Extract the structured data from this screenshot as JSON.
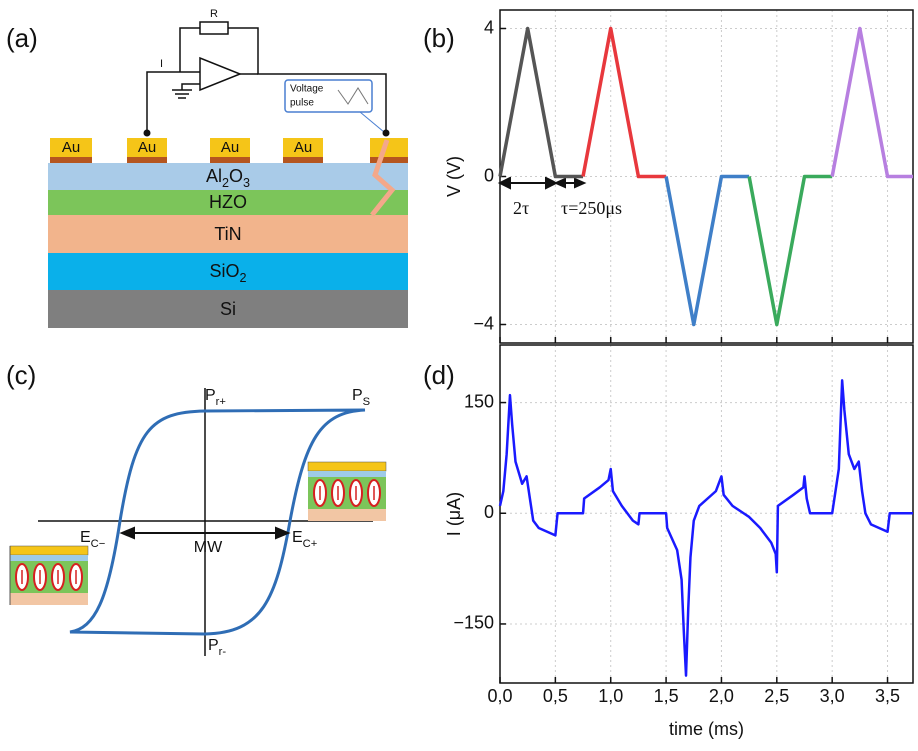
{
  "panel_labels": [
    "(a)",
    "(b)",
    "(c)",
    "(d)"
  ],
  "device": {
    "pads": [
      "Au",
      "Au",
      "Au",
      "Au"
    ],
    "layers": [
      [
        "Al",
        "2",
        "O",
        "3"
      ],
      [
        "HZO"
      ],
      [
        "TiN"
      ],
      [
        "SiO",
        "2"
      ],
      [
        "Si"
      ]
    ],
    "resistor": "R",
    "current": "I",
    "pulse": [
      "Voltage",
      "pulse"
    ]
  },
  "hysteresis": {
    "labels": [
      [
        "P",
        "r+"
      ],
      [
        "P",
        "S"
      ],
      [
        "E",
        "C−"
      ],
      [
        "MW"
      ],
      [
        "E",
        "C+"
      ],
      [
        "P",
        "r-"
      ]
    ]
  },
  "chart_data": [
    {
      "type": "line",
      "ylabel": "V (V)",
      "xlim": [
        0,
        3.73
      ],
      "ylim": [
        -4.5,
        4.5
      ],
      "xticks": [
        0,
        0.5,
        1,
        1.5,
        2,
        2.5,
        3,
        3.5
      ],
      "yticks": [
        {
          "value": -4,
          "label": "−4"
        },
        0,
        4
      ],
      "grid": true,
      "annotations": [
        "2τ",
        "τ=250μs"
      ],
      "series": [
        {
          "color": "#555555",
          "x": [
            0,
            0.25,
            0.5,
            0.75
          ],
          "values": [
            0,
            4,
            0,
            0
          ]
        },
        {
          "color": "#e8383d",
          "x": [
            0.75,
            1,
            1.25,
            1.5
          ],
          "values": [
            0,
            4,
            0,
            0
          ]
        },
        {
          "color": "#3f7fc8",
          "x": [
            1.5,
            1.75,
            2,
            2.25
          ],
          "values": [
            0,
            -4,
            0,
            0
          ]
        },
        {
          "color": "#3aaa5c",
          "x": [
            2.25,
            2.5,
            2.75,
            3
          ],
          "values": [
            0,
            -4,
            0,
            0
          ]
        },
        {
          "color": "#b77fe0",
          "x": [
            3,
            3.25,
            3.5,
            3.73
          ],
          "values": [
            0,
            4,
            0,
            0
          ]
        }
      ]
    },
    {
      "type": "line",
      "ylabel": "I (μA)",
      "xlabel": "time (ms)",
      "xlim": [
        0,
        3.73
      ],
      "ylim": [
        -230,
        228
      ],
      "xticks": [
        {
          "value": 0,
          "label": "0,0"
        },
        {
          "value": 0.5,
          "label": "0,5"
        },
        {
          "value": 1,
          "label": "1,0"
        },
        {
          "value": 1.5,
          "label": "1,5"
        },
        {
          "value": 2,
          "label": "2,0"
        },
        {
          "value": 2.5,
          "label": "2,5"
        },
        {
          "value": 3,
          "label": "3,0"
        },
        {
          "value": 3.5,
          "label": "3,5"
        }
      ],
      "yticks": [
        {
          "value": -150,
          "label": "−150"
        },
        0,
        150
      ],
      "grid": true,
      "series": [
        {
          "color": "#1a1aff",
          "x": [
            0,
            0.03,
            0.06,
            0.09,
            0.11,
            0.14,
            0.2,
            0.24,
            0.27,
            0.3,
            0.35,
            0.5,
            0.52,
            0.75,
            0.76,
            0.9,
            0.98,
            1,
            1.02,
            1.1,
            1.2,
            1.25,
            1.26,
            1.5,
            1.51,
            1.6,
            1.64,
            1.66,
            1.68,
            1.7,
            1.72,
            1.75,
            1.8,
            1.95,
            2,
            2.02,
            2.1,
            2.2,
            2.25,
            2.35,
            2.45,
            2.49,
            2.5,
            2.51,
            2.65,
            2.74,
            2.75,
            2.77,
            2.8,
            3,
            3.02,
            3.06,
            3.09,
            3.11,
            3.15,
            3.2,
            3.24,
            3.27,
            3.3,
            3.35,
            3.5,
            3.52,
            3.73
          ],
          "values": [
            10,
            30,
            80,
            160,
            120,
            70,
            40,
            50,
            20,
            -10,
            -20,
            -30,
            0,
            0,
            20,
            35,
            45,
            60,
            30,
            10,
            -10,
            -15,
            0,
            0,
            -20,
            -50,
            -90,
            -160,
            -220,
            -130,
            -60,
            -10,
            10,
            30,
            50,
            25,
            10,
            0,
            -5,
            -20,
            -40,
            -55,
            -80,
            10,
            25,
            35,
            50,
            20,
            0,
            0,
            20,
            60,
            180,
            140,
            80,
            60,
            70,
            30,
            0,
            -15,
            -25,
            0,
            0
          ]
        }
      ]
    }
  ]
}
